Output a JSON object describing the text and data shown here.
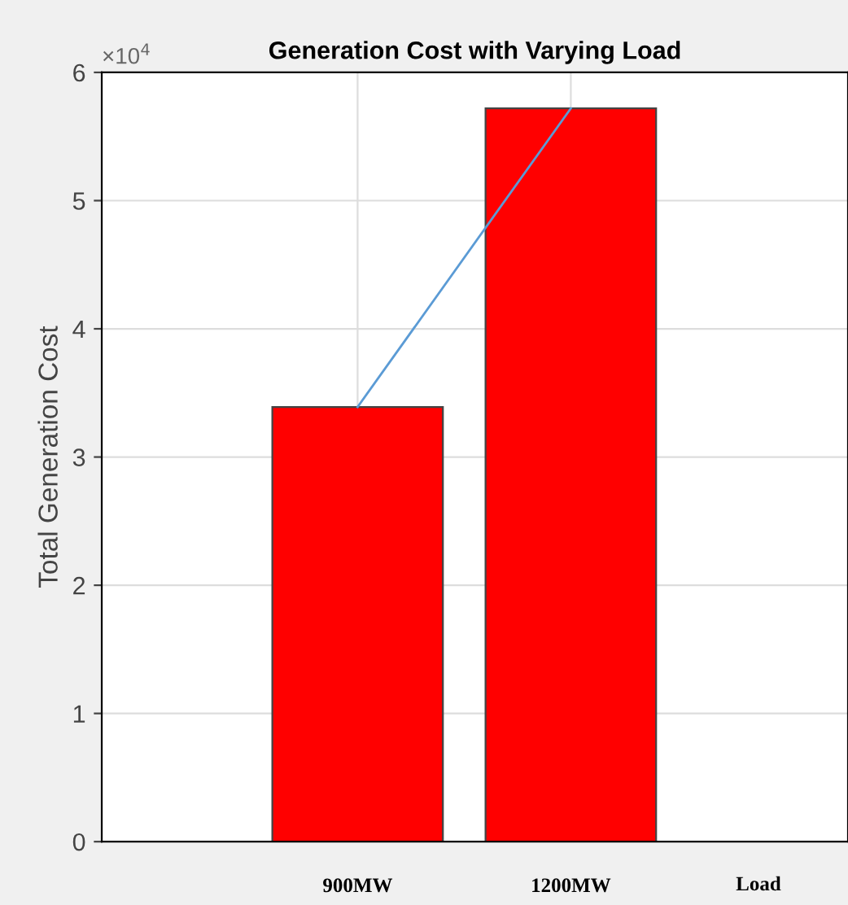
{
  "chart_data": {
    "type": "bar",
    "title": "Generation Cost with Varying Load",
    "xlabel": "Load",
    "ylabel": "Total Generation Cost",
    "categories": [
      "900MW",
      "1200MW"
    ],
    "series": [
      {
        "color": "#ff0000",
        "values": [
          3.39,
          5.72
        ]
      },
      {
        "type": "line",
        "color": "#5b9bd5",
        "values": [
          3.39,
          5.72
        ]
      }
    ],
    "ylim": [
      0,
      6
    ],
    "yticks": [
      0,
      1,
      2,
      3,
      4,
      5,
      6
    ],
    "grid": true,
    "annotations": [
      "×10$^{4}$"
    ]
  }
}
